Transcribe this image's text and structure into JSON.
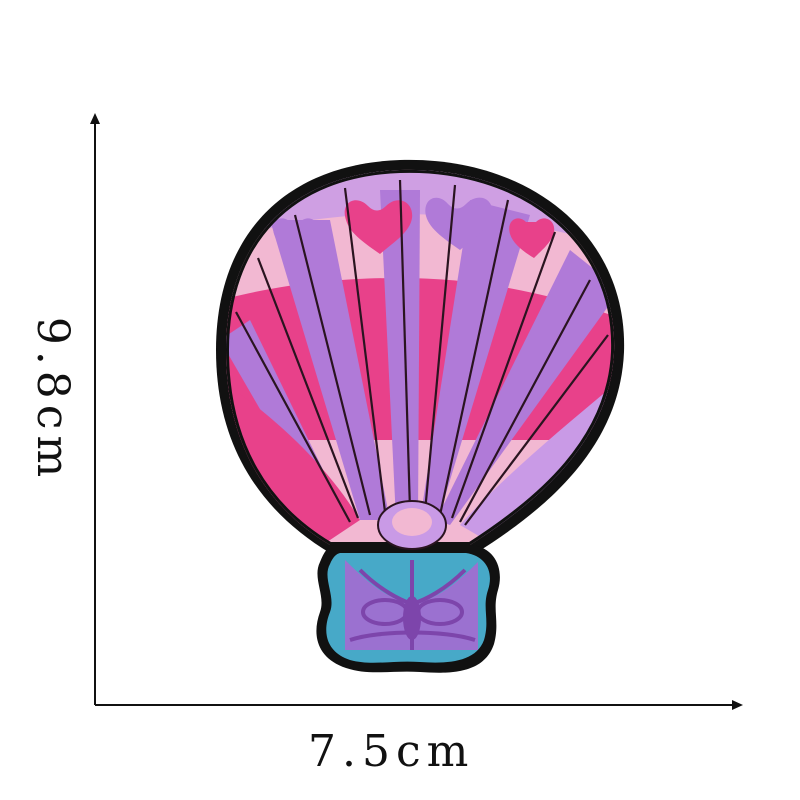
{
  "dimensions": {
    "width_label": "7.5cm",
    "height_label": "9.8cm"
  },
  "colors": {
    "background": "#ffffff",
    "outline": "#111111",
    "pink": "#e8418a",
    "light_pink": "#f2b8d2",
    "purple": "#b07ad8",
    "light_purple": "#c99ae6",
    "basket_blue": "#47a9c8",
    "basket_purple": "#a46ad0"
  },
  "subject": {
    "icon": "hot-air-balloon-patch-icon"
  }
}
